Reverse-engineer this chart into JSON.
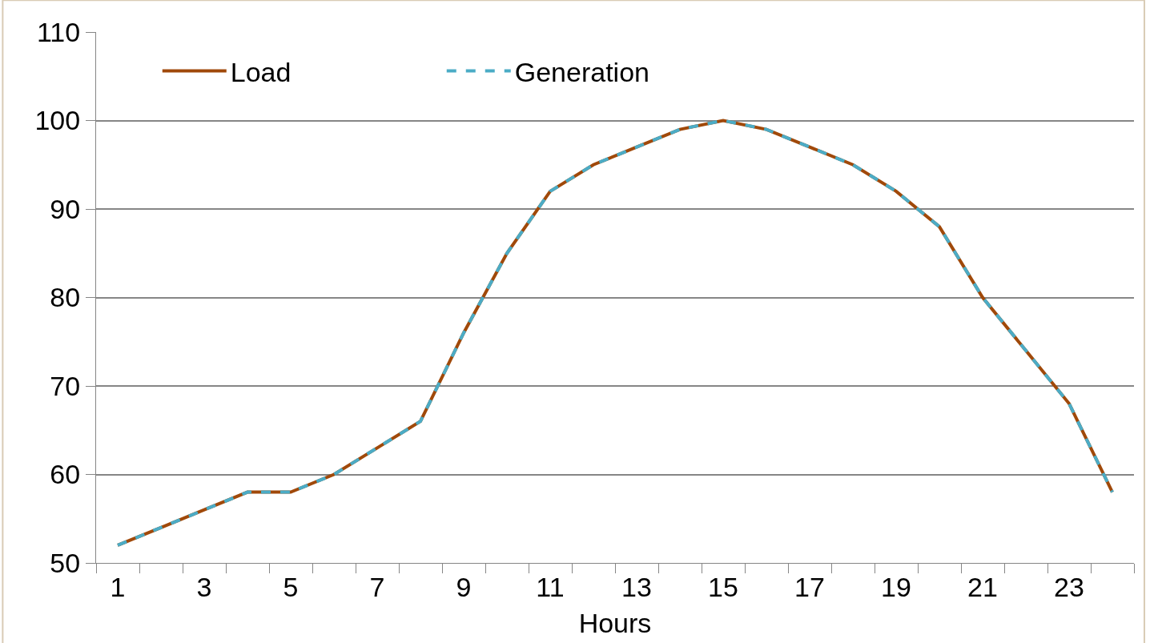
{
  "chart_data": {
    "type": "line",
    "xlabel": "Hours",
    "x": [
      1,
      2,
      3,
      4,
      5,
      6,
      7,
      8,
      9,
      10,
      11,
      12,
      13,
      14,
      15,
      16,
      17,
      18,
      19,
      20,
      21,
      22,
      23,
      24
    ],
    "xlim": [
      0.5,
      24.5
    ],
    "xticks": [
      1,
      3,
      5,
      7,
      9,
      11,
      13,
      15,
      17,
      19,
      21,
      23,
      {
        "value": 0.5,
        "label": null
      },
      {
        "value": 1.5,
        "label": null
      },
      {
        "value": 2.5,
        "label": null
      },
      {
        "value": 3.5,
        "label": null
      },
      {
        "value": 4.5,
        "label": null
      },
      {
        "value": 5.5,
        "label": null
      },
      {
        "value": 6.5,
        "label": null
      },
      {
        "value": 7.5,
        "label": null
      },
      {
        "value": 8.5,
        "label": null
      },
      {
        "value": 9.5,
        "label": null
      },
      {
        "value": 10.5,
        "label": null
      },
      {
        "value": 11.5,
        "label": null
      },
      {
        "value": 12.5,
        "label": null
      },
      {
        "value": 13.5,
        "label": null
      },
      {
        "value": 14.5,
        "label": null
      },
      {
        "value": 15.5,
        "label": null
      },
      {
        "value": 16.5,
        "label": null
      },
      {
        "value": 17.5,
        "label": null
      },
      {
        "value": 18.5,
        "label": null
      },
      {
        "value": 19.5,
        "label": null
      },
      {
        "value": 20.5,
        "label": null
      },
      {
        "value": 21.5,
        "label": null
      },
      {
        "value": 22.5,
        "label": null
      },
      {
        "value": 23.5,
        "label": null
      },
      {
        "value": 24.5,
        "label": null
      }
    ],
    "series": [
      {
        "name": "Load",
        "color": "#a0490a",
        "line_style": "solid",
        "values": [
          52,
          54,
          56,
          58,
          58,
          60,
          63,
          66,
          76,
          85,
          92,
          95,
          97,
          99,
          100,
          99,
          97,
          95,
          92,
          88,
          80,
          74,
          68,
          58
        ]
      },
      {
        "name": "Generation",
        "color": "#4bacc6",
        "line_style": "dashed",
        "values": [
          52,
          54,
          56,
          58,
          58,
          60,
          63,
          66,
          76,
          85,
          92,
          95,
          97,
          99,
          100,
          99,
          97,
          95,
          92,
          88,
          80,
          74,
          68,
          58
        ]
      }
    ],
    "ylim": [
      50,
      110
    ],
    "yticks": [
      50,
      60,
      70,
      80,
      90,
      100,
      110
    ],
    "grid": "y",
    "legend": "top left",
    "marker": "none"
  }
}
